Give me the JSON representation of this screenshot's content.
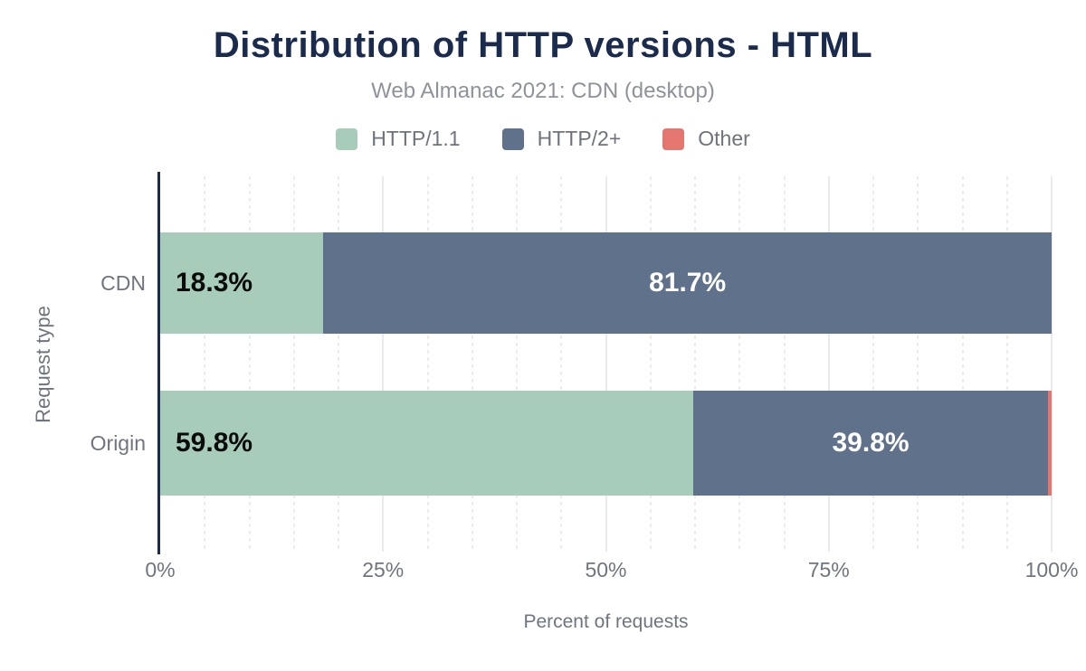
{
  "chart_data": {
    "type": "bar",
    "orientation": "horizontal-stacked",
    "title": "Distribution of HTTP versions - HTML",
    "subtitle": "Web Almanac 2021: CDN (desktop)",
    "categories": [
      "CDN",
      "Origin"
    ],
    "series": [
      {
        "name": "HTTP/1.1",
        "color": "#a7ccba",
        "label_color": "#0b0b0c",
        "label_align": "start",
        "values": [
          18.3,
          59.8
        ]
      },
      {
        "name": "HTTP/2+",
        "color": "#60718c",
        "label_color": "#ffffff",
        "label_align": "center",
        "values": [
          81.7,
          39.8
        ]
      },
      {
        "name": "Other",
        "color": "#e5756f",
        "label_color": "#ffffff",
        "label_align": "center",
        "values": [
          0.0,
          0.4
        ]
      }
    ],
    "xlabel": "Percent of requests",
    "ylabel": "Request type",
    "xlim": [
      0,
      100
    ],
    "x_ticks": [
      {
        "value": 0,
        "label": "0%"
      },
      {
        "value": 25,
        "label": "25%"
      },
      {
        "value": 50,
        "label": "50%"
      },
      {
        "value": 75,
        "label": "75%"
      },
      {
        "value": 100,
        "label": "100%"
      }
    ],
    "grid": {
      "minor_step": 5,
      "major_step": 25,
      "axis": "x"
    },
    "legend_position": "top",
    "value_label_format": "{value}%",
    "min_label_value": 5
  },
  "colors": {
    "background": "#ffffff",
    "title": "#1b2b4d",
    "subtitle": "#8e939b",
    "legend_text": "#6e747d",
    "axis_text": "#6f7580",
    "axis_line": "#1c2b4a",
    "grid_minor": "#ececf0",
    "grid_major": "#e9e9ee"
  }
}
